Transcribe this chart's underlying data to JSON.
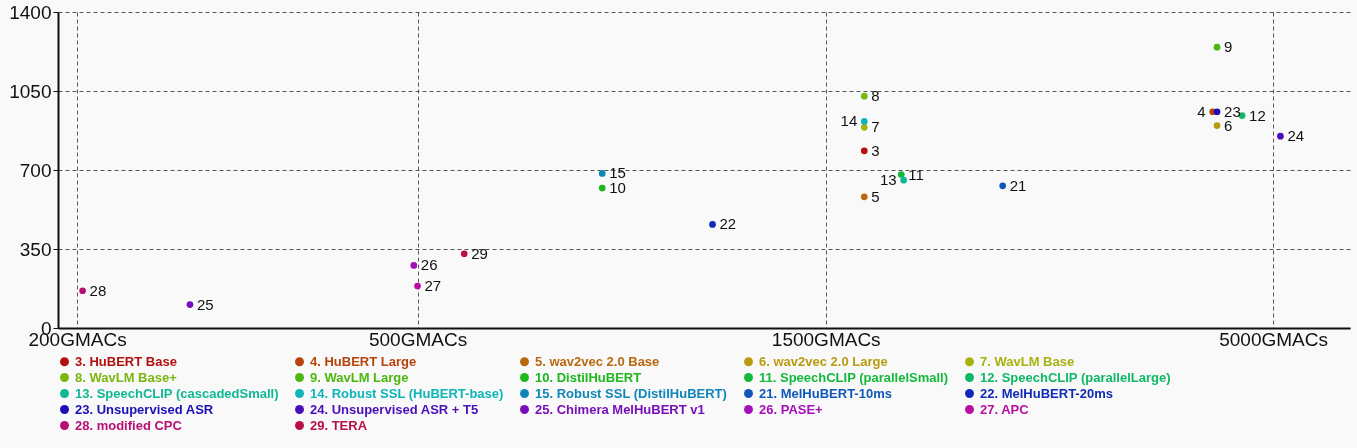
{
  "chart_data": {
    "type": "scatter",
    "xlim": [
      190,
      6150
    ],
    "ylim": [
      0,
      1400
    ],
    "log": "x",
    "xticks": [
      {
        "value": 200,
        "label": "200GMACs"
      },
      {
        "value": 500,
        "label": "500GMACs"
      },
      {
        "value": 1500,
        "label": "1500GMACs"
      },
      {
        "value": 5000,
        "label": "5000GMACs"
      }
    ],
    "yticks": [
      0,
      350,
      700,
      1050,
      1400
    ],
    "grid": true,
    "legend": "bottom",
    "marker": "circle",
    "series": [
      {
        "name": "3. HuBERT Base",
        "color": "#b30f0f",
        "x": [
          1664
        ],
        "values": [
          785
        ]
      },
      {
        "name": "4. HuBERT Large",
        "color": "#b8420c",
        "x": [
          4250
        ],
        "values": [
          958
        ]
      },
      {
        "name": "5. wav2vec 2.0 Base",
        "color": "#b8680f",
        "x": [
          1664
        ],
        "values": [
          581
        ]
      },
      {
        "name": "6. wav2vec 2.0 Large",
        "color": "#b89a0f",
        "x": [
          4300
        ],
        "values": [
          897
        ]
      },
      {
        "name": "7. WavLM Base",
        "color": "#a8b20f",
        "x": [
          1664
        ],
        "values": [
          889
        ]
      },
      {
        "name": "8. WavLM Base+",
        "color": "#7ab60f",
        "x": [
          1664
        ],
        "values": [
          1027
        ]
      },
      {
        "name": "9. WavLM Large",
        "color": "#4cb80f",
        "x": [
          4300
        ],
        "values": [
          1244
        ]
      },
      {
        "name": "10. DistilHuBERT",
        "color": "#1cb81c",
        "x": [
          822
        ],
        "values": [
          620
        ]
      },
      {
        "name": "11. SpeechCLIP (parallelSmall)",
        "color": "#14b83c",
        "x": [
          1838
        ],
        "values": [
          680
        ]
      },
      {
        "name": "12. SpeechCLIP (parallelLarge)",
        "color": "#0fb866",
        "x": [
          4600
        ],
        "values": [
          941
        ]
      },
      {
        "name": "13. SpeechCLIP (cascadedSmall)",
        "color": "#0fb894",
        "x": [
          1850
        ],
        "values": [
          655
        ]
      },
      {
        "name": "14. Robust SSL (HuBERT-base)",
        "color": "#0fb4b8",
        "x": [
          1664
        ],
        "values": [
          915
        ]
      },
      {
        "name": "15. Robust SSL (DistilHuBERT)",
        "color": "#0f86b8",
        "x": [
          822
        ],
        "values": [
          685
        ]
      },
      {
        "name": "21. MelHuBERT-10ms",
        "color": "#0f58b8",
        "x": [
          2415
        ],
        "values": [
          630
        ]
      },
      {
        "name": "22. MelHuBERT-20ms",
        "color": "#0f2ab8",
        "x": [
          1106
        ],
        "values": [
          459
        ]
      },
      {
        "name": "23. Unsupervised ASR",
        "color": "#1a0fb8",
        "x": [
          4300
        ],
        "values": [
          958
        ]
      },
      {
        "name": "24. Unsupervised ASR + T5",
        "color": "#480fb8",
        "x": [
          5100
        ],
        "values": [
          850
        ]
      },
      {
        "name": "25. Chimera MelHuBERT v1",
        "color": "#760fb8",
        "x": [
          271
        ],
        "values": [
          104
        ]
      },
      {
        "name": "26. PASE+",
        "color": "#a40fb8",
        "x": [
          495
        ],
        "values": [
          277
        ]
      },
      {
        "name": "27. APC",
        "color": "#b80fa0",
        "x": [
          500
        ],
        "values": [
          186
        ]
      },
      {
        "name": "28. modified CPC",
        "color": "#b80f72",
        "x": [
          203
        ],
        "values": [
          165
        ]
      },
      {
        "name": "29. TERA",
        "color": "#b80f44",
        "x": [
          567
        ],
        "values": [
          329
        ]
      }
    ],
    "annotations": [
      {
        "text": "3",
        "x": 1664,
        "y": 785
      },
      {
        "text": "4",
        "x": 4250,
        "y": 958
      },
      {
        "text": "5",
        "x": 1664,
        "y": 581
      },
      {
        "text": "6",
        "x": 4300,
        "y": 897
      },
      {
        "text": "7",
        "x": 1664,
        "y": 889
      },
      {
        "text": "8",
        "x": 1664,
        "y": 1027
      },
      {
        "text": "9",
        "x": 4300,
        "y": 1244
      },
      {
        "text": "10",
        "x": 822,
        "y": 620
      },
      {
        "text": "11",
        "x": 1838,
        "y": 680
      },
      {
        "text": "12",
        "x": 4600,
        "y": 941
      },
      {
        "text": "13",
        "x": 1850,
        "y": 655
      },
      {
        "text": "14",
        "x": 1664,
        "y": 915
      },
      {
        "text": "15",
        "x": 822,
        "y": 685
      },
      {
        "text": "21",
        "x": 2415,
        "y": 630
      },
      {
        "text": "22",
        "x": 1106,
        "y": 459
      },
      {
        "text": "23",
        "x": 4300,
        "y": 958
      },
      {
        "text": "24",
        "x": 5100,
        "y": 850
      },
      {
        "text": "25",
        "x": 271,
        "y": 104
      },
      {
        "text": "26",
        "x": 495,
        "y": 277
      },
      {
        "text": "27",
        "x": 500,
        "y": 186
      },
      {
        "text": "28",
        "x": 203,
        "y": 165
      },
      {
        "text": "29",
        "x": 567,
        "y": 329
      }
    ]
  }
}
